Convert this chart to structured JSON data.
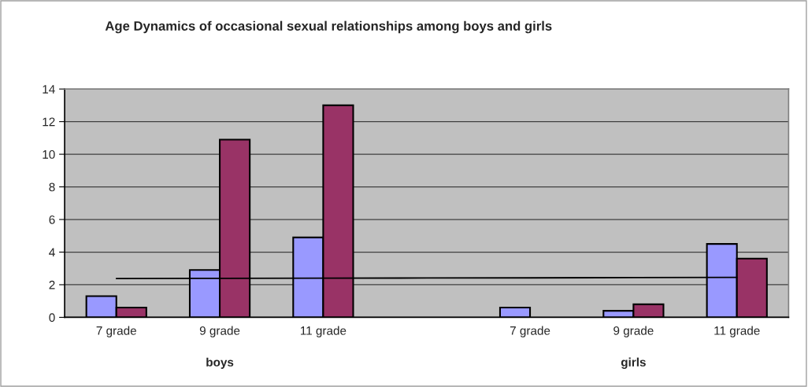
{
  "chart_data": {
    "type": "bar",
    "title": "Age Dynamics of occasional sexual relationships among boys and girls",
    "categories": [
      "7 grade",
      "9 grade",
      "11 grade",
      null,
      "7 grade",
      "9 grade",
      "11 grade"
    ],
    "series": [
      {
        "color": "#9999ff",
        "values": [
          1.3,
          2.9,
          4.9,
          null,
          0.6,
          0.4,
          4.5
        ]
      },
      {
        "color": "#993366",
        "values": [
          0.6,
          10.9,
          13.0,
          null,
          null,
          0.8,
          3.6
        ]
      },
      {
        "type": "line",
        "color": "#000000",
        "values": [
          2.38,
          2.39,
          2.4,
          2.41,
          2.42,
          2.44,
          2.45
        ]
      }
    ],
    "annotations": [
      "boys",
      "girls"
    ],
    "ylim": [
      0,
      14
    ],
    "yticks": [
      0,
      2,
      4,
      6,
      8,
      10,
      12,
      14
    ],
    "grid": "y",
    "legend": false
  }
}
